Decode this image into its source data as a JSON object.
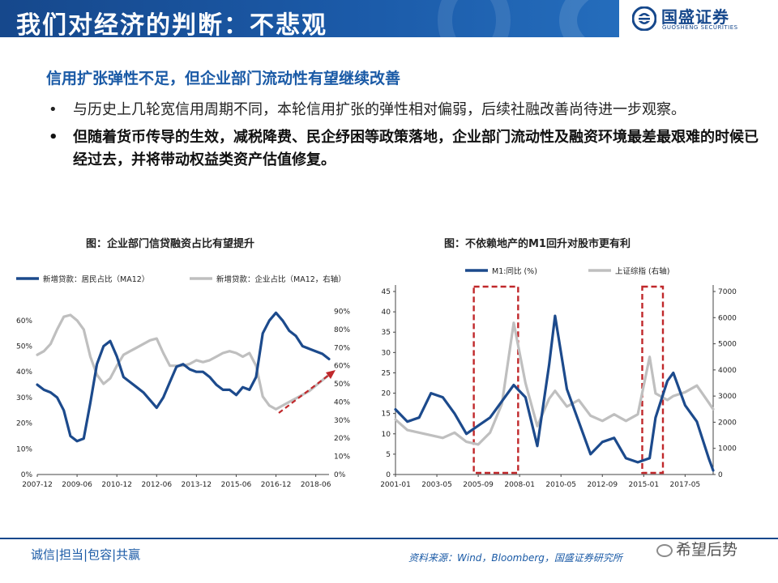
{
  "header": {
    "title": "我们对经济的判断：不悲观",
    "logo_cn": "国盛证券",
    "logo_en": "GUOSHENG SECURITIES"
  },
  "subhead": "信用扩张弹性不足，但企业部门流动性有望继续改善",
  "bullets": [
    "与历史上几轮宽信用周期不同，本轮信用扩张的弹性相对偏弱，后续社融改善尚待进一步观察。",
    "但随着货币传导的生效，减税降费、民企纾困等政策落地，企业部门流动性及融资环境最差最艰难的时候已经过去，并将带动权益类资产估值修复。"
  ],
  "footer": {
    "slogan": "诚信|担当|包容|共赢",
    "source": "资料来源：Wind，Bloomberg，国盛证券研究所",
    "watermark": "希望后势"
  },
  "colors": {
    "navy": "#1c4a8c",
    "gray": "#bfbfbf",
    "red": "#c0282b",
    "accent": "#1a5aa6"
  },
  "chart_data": [
    {
      "type": "line",
      "title": "图：企业部门信贷融资占比有望提升",
      "x_ticks": [
        "2007-12",
        "2009-06",
        "2010-12",
        "2012-06",
        "2013-12",
        "2015-06",
        "2016-12",
        "2018-06"
      ],
      "left_axis": {
        "ticks": [
          "0%",
          "10%",
          "20%",
          "30%",
          "40%",
          "50%",
          "60%"
        ],
        "ylim": [
          0,
          65
        ]
      },
      "right_axis": {
        "ticks": [
          "0%",
          "10%",
          "20%",
          "30%",
          "40%",
          "50%",
          "60%",
          "70%",
          "80%",
          "90%"
        ],
        "ylim": [
          0,
          92
        ]
      },
      "series": [
        {
          "name": "新增贷款：居民占比（MA12）",
          "axis": "left",
          "x": [
            "2007-12",
            "2008-03",
            "2008-06",
            "2008-09",
            "2008-12",
            "2009-03",
            "2009-06",
            "2009-09",
            "2009-12",
            "2010-03",
            "2010-06",
            "2010-09",
            "2010-12",
            "2011-03",
            "2011-06",
            "2011-09",
            "2011-12",
            "2012-03",
            "2012-06",
            "2012-09",
            "2012-12",
            "2013-03",
            "2013-06",
            "2013-09",
            "2013-12",
            "2014-03",
            "2014-06",
            "2014-09",
            "2014-12",
            "2015-03",
            "2015-06",
            "2015-09",
            "2015-12",
            "2016-03",
            "2016-06",
            "2016-09",
            "2016-12",
            "2017-03",
            "2017-06",
            "2017-09",
            "2017-12",
            "2018-03",
            "2018-06",
            "2018-09",
            "2018-12"
          ],
          "values": [
            35,
            33,
            32,
            30,
            25,
            15,
            13,
            14,
            28,
            43,
            50,
            52,
            46,
            38,
            36,
            34,
            32,
            29,
            26,
            30,
            36,
            42,
            43,
            41,
            40,
            40,
            38,
            35,
            33,
            33,
            31,
            34,
            33,
            38,
            55,
            60,
            63,
            60,
            56,
            54,
            50,
            49,
            48,
            47,
            45
          ]
        },
        {
          "name": "新增贷款：企业占比（MA12，右轴）",
          "axis": "right",
          "x": [
            "2007-12",
            "2008-03",
            "2008-06",
            "2008-09",
            "2008-12",
            "2009-03",
            "2009-06",
            "2009-09",
            "2009-12",
            "2010-03",
            "2010-06",
            "2010-09",
            "2010-12",
            "2011-03",
            "2011-06",
            "2011-09",
            "2011-12",
            "2012-03",
            "2012-06",
            "2012-09",
            "2012-12",
            "2013-03",
            "2013-06",
            "2013-09",
            "2013-12",
            "2014-03",
            "2014-06",
            "2014-09",
            "2014-12",
            "2015-03",
            "2015-06",
            "2015-09",
            "2015-12",
            "2016-03",
            "2016-06",
            "2016-09",
            "2016-12",
            "2017-03",
            "2017-06",
            "2017-09",
            "2017-12",
            "2018-03",
            "2018-06",
            "2018-09",
            "2018-12"
          ],
          "values": [
            66,
            68,
            72,
            80,
            87,
            88,
            85,
            80,
            65,
            55,
            50,
            53,
            60,
            66,
            68,
            70,
            72,
            74,
            75,
            67,
            60,
            60,
            60,
            61,
            63,
            62,
            63,
            65,
            67,
            68,
            67,
            65,
            67,
            60,
            43,
            38,
            36,
            38,
            40,
            42,
            44,
            46,
            49,
            52,
            55
          ]
        }
      ],
      "annotation": "红色箭头：企业占比上行"
    },
    {
      "type": "line",
      "title": "图：不依赖地产的M1回升对股市更有利",
      "x_ticks": [
        "2001-01",
        "2003-05",
        "2005-09",
        "2008-01",
        "2010-05",
        "2012-09",
        "2015-01",
        "2017-05"
      ],
      "left_axis": {
        "ticks": [
          "0",
          "5",
          "10",
          "15",
          "20",
          "25",
          "30",
          "35",
          "40",
          "45"
        ],
        "ylim": [
          0,
          45
        ]
      },
      "right_axis": {
        "ticks": [
          "0",
          "1000",
          "2000",
          "3000",
          "4000",
          "5000",
          "6000",
          "7000"
        ],
        "ylim": [
          0,
          7000
        ]
      },
      "series": [
        {
          "name": "M1:同比",
          "unit": "(%)",
          "axis": "left",
          "x": [
            "2001-01",
            "2001-09",
            "2002-05",
            "2003-01",
            "2003-09",
            "2004-05",
            "2005-01",
            "2005-09",
            "2006-05",
            "2007-01",
            "2007-09",
            "2008-05",
            "2009-01",
            "2009-09",
            "2010-01",
            "2010-09",
            "2011-05",
            "2012-01",
            "2012-09",
            "2013-05",
            "2014-01",
            "2014-09",
            "2015-05",
            "2015-09",
            "2016-05",
            "2016-09",
            "2017-05",
            "2018-01",
            "2018-09",
            "2018-12"
          ],
          "values": [
            16,
            13,
            14,
            20,
            19,
            15,
            10,
            12,
            14,
            18,
            22,
            19,
            7,
            27,
            39,
            21,
            13,
            5,
            8,
            9,
            4,
            3,
            4,
            14,
            23,
            25,
            17,
            13,
            4,
            1
          ]
        },
        {
          "name": "上证综指",
          "unit": "(右轴)",
          "axis": "right",
          "x": [
            "2001-01",
            "2001-09",
            "2002-05",
            "2003-01",
            "2003-09",
            "2004-05",
            "2005-01",
            "2005-09",
            "2006-05",
            "2007-01",
            "2007-09",
            "2008-05",
            "2009-01",
            "2009-09",
            "2010-01",
            "2010-09",
            "2011-05",
            "2012-01",
            "2012-09",
            "2013-05",
            "2014-01",
            "2014-09",
            "2015-05",
            "2015-09",
            "2016-05",
            "2016-09",
            "2017-05",
            "2018-01",
            "2018-09",
            "2018-12"
          ],
          "values": [
            2100,
            1700,
            1600,
            1500,
            1400,
            1600,
            1250,
            1150,
            1600,
            2700,
            5800,
            3500,
            1850,
            2900,
            3200,
            2600,
            2850,
            2250,
            2050,
            2300,
            2050,
            2300,
            4500,
            3100,
            2850,
            3000,
            3150,
            3400,
            2750,
            2500
          ]
        }
      ],
      "highlight_ranges": [
        [
          "2005-06",
          "2007-12"
        ],
        [
          "2014-12",
          "2016-02"
        ]
      ]
    }
  ]
}
